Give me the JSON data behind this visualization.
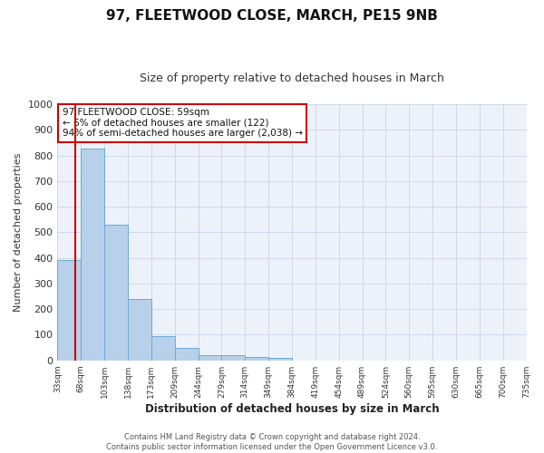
{
  "title1": "97, FLEETWOOD CLOSE, MARCH, PE15 9NB",
  "title2": "Size of property relative to detached houses in March",
  "xlabel": "Distribution of detached houses by size in March",
  "ylabel": "Number of detached properties",
  "bin_labels": [
    "33sqm",
    "68sqm",
    "103sqm",
    "138sqm",
    "173sqm",
    "209sqm",
    "244sqm",
    "279sqm",
    "314sqm",
    "349sqm",
    "384sqm",
    "419sqm",
    "454sqm",
    "489sqm",
    "524sqm",
    "560sqm",
    "595sqm",
    "630sqm",
    "665sqm",
    "700sqm",
    "735sqm"
  ],
  "bar_heights": [
    390,
    828,
    530,
    240,
    96,
    50,
    20,
    20,
    14,
    8,
    0,
    0,
    0,
    0,
    0,
    0,
    0,
    0,
    0,
    0
  ],
  "bar_color": "#b8d0ea",
  "bar_edge_color": "#6aaad4",
  "vline_color": "#cc0000",
  "annotation_text": "97 FLEETWOOD CLOSE: 59sqm\n← 6% of detached houses are smaller (122)\n94% of semi-detached houses are larger (2,038) →",
  "annotation_box_color": "#ffffff",
  "annotation_box_edge": "#cc0000",
  "ylim": [
    0,
    1000
  ],
  "yticks": [
    0,
    100,
    200,
    300,
    400,
    500,
    600,
    700,
    800,
    900,
    1000
  ],
  "footer1": "Contains HM Land Registry data © Crown copyright and database right 2024.",
  "footer2": "Contains public sector information licensed under the Open Government Licence v3.0.",
  "grid_color": "#ccd8ea",
  "background_color": "#edf2fa"
}
